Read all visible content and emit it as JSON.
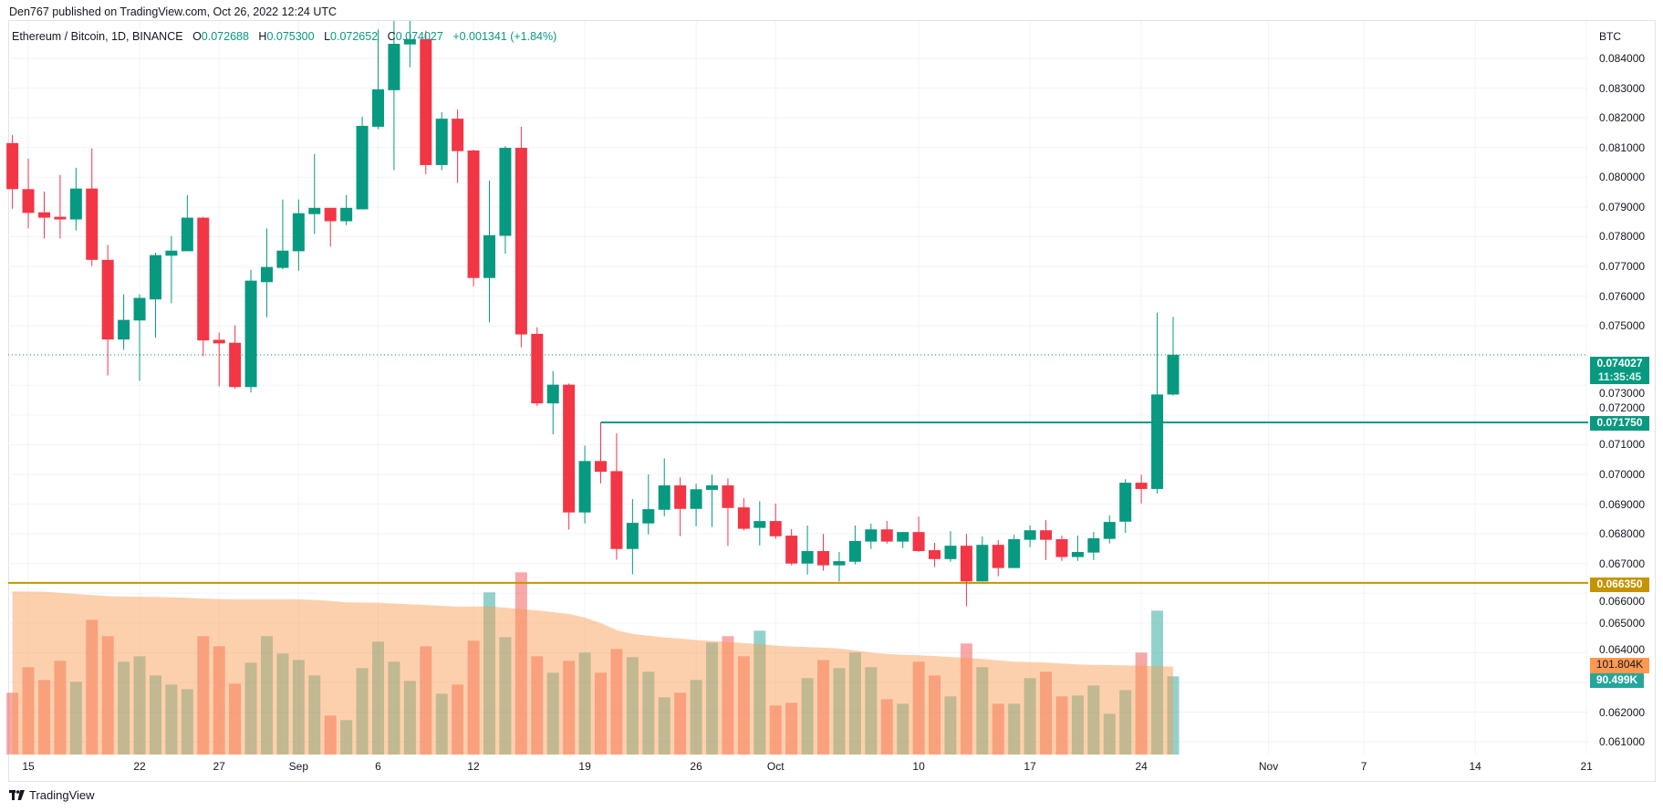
{
  "header": {
    "published": "Den767 published on TradingView.com, Oct 26, 2022 12:24 UTC"
  },
  "legend": {
    "symbol": "Ethereum / Bitcoin, 1D, BINANCE",
    "o_label": "O",
    "o": "0.072688",
    "h_label": "H",
    "h": "0.075300",
    "l_label": "L",
    "l": "0.072652",
    "c_label": "C",
    "c": "0.074027",
    "change": "+0.001341 (+1.84%)"
  },
  "price_axis": {
    "unit": "BTC",
    "ticks": [
      "0.084000",
      "0.083000",
      "0.082000",
      "0.081000",
      "0.080000",
      "0.079000",
      "0.078000",
      "0.077000",
      "0.076000",
      "0.075000",
      "0.073000",
      "0.072000",
      "0.071000",
      "0.070000",
      "0.069000",
      "0.068000",
      "0.067000",
      "0.066000",
      "0.065000",
      "0.064000",
      "0.062000",
      "0.061000"
    ]
  },
  "axis_labels": {
    "last_price": "0.074027",
    "countdown": "11:35:45",
    "resistance": "0.071750",
    "support": "0.066350",
    "volume_ma": "101.804K",
    "volume_last": "90.499K"
  },
  "footer": {
    "brand": "TradingView"
  },
  "colors": {
    "up": "#089981",
    "down": "#f23645",
    "resistance_line": "#089981",
    "support_line": "#c59400",
    "volume_up": "rgba(38,166,154,0.5)",
    "volume_down": "rgba(239,83,80,0.5)",
    "volume_ma_fill": "rgba(251,153,77,0.46)",
    "grid": "#f0f3fa"
  },
  "chart_data": {
    "type": "candlestick",
    "ylabel": "BTC",
    "ylim": [
      0.06057,
      0.08529
    ],
    "grid": true,
    "x_ticks": [
      {
        "label": "15",
        "date": "2022-08-15"
      },
      {
        "label": "22",
        "date": "2022-08-22"
      },
      {
        "label": "27",
        "date": "2022-08-27"
      },
      {
        "label": "Sep",
        "date": "2022-09-01"
      },
      {
        "label": "6",
        "date": "2022-09-06"
      },
      {
        "label": "12",
        "date": "2022-09-12"
      },
      {
        "label": "19",
        "date": "2022-09-19"
      },
      {
        "label": "26",
        "date": "2022-09-26"
      },
      {
        "label": "Oct",
        "date": "2022-10-01"
      },
      {
        "label": "10",
        "date": "2022-10-10"
      },
      {
        "label": "17",
        "date": "2022-10-17"
      },
      {
        "label": "24",
        "date": "2022-10-24"
      },
      {
        "label": "Nov",
        "date": "2022-11-01"
      },
      {
        "label": "7",
        "date": "2022-11-07"
      },
      {
        "label": "14",
        "date": "2022-11-14"
      },
      {
        "label": "21",
        "date": "2022-11-21"
      }
    ],
    "x": [
      "2022-08-14",
      "2022-08-15",
      "2022-08-16",
      "2022-08-17",
      "2022-08-18",
      "2022-08-19",
      "2022-08-20",
      "2022-08-21",
      "2022-08-22",
      "2022-08-23",
      "2022-08-24",
      "2022-08-25",
      "2022-08-26",
      "2022-08-27",
      "2022-08-28",
      "2022-08-29",
      "2022-08-30",
      "2022-08-31",
      "2022-09-01",
      "2022-09-02",
      "2022-09-03",
      "2022-09-04",
      "2022-09-05",
      "2022-09-06",
      "2022-09-07",
      "2022-09-08",
      "2022-09-09",
      "2022-09-10",
      "2022-09-11",
      "2022-09-12",
      "2022-09-13",
      "2022-09-14",
      "2022-09-15",
      "2022-09-16",
      "2022-09-17",
      "2022-09-18",
      "2022-09-19",
      "2022-09-20",
      "2022-09-21",
      "2022-09-22",
      "2022-09-23",
      "2022-09-24",
      "2022-09-25",
      "2022-09-26",
      "2022-09-27",
      "2022-09-28",
      "2022-09-29",
      "2022-09-30",
      "2022-10-01",
      "2022-10-02",
      "2022-10-03",
      "2022-10-04",
      "2022-10-05",
      "2022-10-06",
      "2022-10-07",
      "2022-10-08",
      "2022-10-09",
      "2022-10-10",
      "2022-10-11",
      "2022-10-12",
      "2022-10-13",
      "2022-10-14",
      "2022-10-15",
      "2022-10-16",
      "2022-10-17",
      "2022-10-18",
      "2022-10-19",
      "2022-10-20",
      "2022-10-21",
      "2022-10-22",
      "2022-10-23",
      "2022-10-24",
      "2022-10-25",
      "2022-10-26"
    ],
    "open": [
      0.08115,
      0.0796,
      0.07882,
      0.07867,
      0.07858,
      0.07962,
      0.07722,
      0.07454,
      0.07518,
      0.07589,
      0.07736,
      0.07751,
      0.07864,
      0.07453,
      0.07443,
      0.07294,
      0.07647,
      0.07695,
      0.07751,
      0.07876,
      0.07897,
      0.07852,
      0.07892,
      0.0817,
      0.08293,
      0.08447,
      0.08465,
      0.08041,
      0.08197,
      0.0809,
      0.07661,
      0.07803,
      0.08099,
      0.07473,
      0.07239,
      0.07302,
      0.06872,
      0.07045,
      0.07011,
      0.06749,
      0.06835,
      0.06881,
      0.06963,
      0.06884,
      0.06948,
      0.06963,
      0.06889,
      0.0682,
      0.06843,
      0.06794,
      0.067,
      0.06742,
      0.06694,
      0.06706,
      0.06774,
      0.06815,
      0.06774,
      0.06806,
      0.06745,
      0.06715,
      0.0676,
      0.0664,
      0.06763,
      0.06685,
      0.0678,
      0.06812,
      0.06782,
      0.06722,
      0.06737,
      0.06783,
      0.06841,
      0.06972,
      0.06951,
      0.072688
    ],
    "high": [
      0.08142,
      0.08063,
      0.07952,
      0.08008,
      0.08032,
      0.08097,
      0.07772,
      0.07606,
      0.07606,
      0.07746,
      0.07802,
      0.0794,
      0.07867,
      0.07477,
      0.07502,
      0.07689,
      0.07828,
      0.07925,
      0.07925,
      0.08078,
      0.07897,
      0.0794,
      0.08204,
      0.08497,
      0.08529,
      0.08529,
      0.08493,
      0.08219,
      0.08228,
      0.08093,
      0.07989,
      0.08105,
      0.0817,
      0.07495,
      0.07348,
      0.07306,
      0.07097,
      0.07175,
      0.07138,
      0.06917,
      0.07,
      0.07054,
      0.0699,
      0.06969,
      0.06999,
      0.06987,
      0.0692,
      0.0691,
      0.06902,
      0.06816,
      0.06828,
      0.068,
      0.06739,
      0.06828,
      0.06834,
      0.06843,
      0.06806,
      0.06858,
      0.0677,
      0.06809,
      0.068,
      0.06791,
      0.06779,
      0.06797,
      0.06828,
      0.06846,
      0.06794,
      0.06794,
      0.06806,
      0.06862,
      0.06984,
      0.06999,
      0.07544,
      0.0753
    ],
    "low": [
      0.07894,
      0.07828,
      0.07794,
      0.07794,
      0.07821,
      0.07701,
      0.07333,
      0.07419,
      0.07315,
      0.0746,
      0.07576,
      0.07751,
      0.07398,
      0.07296,
      0.07288,
      0.07276,
      0.07529,
      0.0769,
      0.07685,
      0.07809,
      0.07766,
      0.07839,
      0.07892,
      0.08162,
      0.08024,
      0.0837,
      0.08011,
      0.08024,
      0.07981,
      0.07633,
      0.07512,
      0.07743,
      0.07428,
      0.0723,
      0.07135,
      0.06814,
      0.06835,
      0.0697,
      0.06713,
      0.06664,
      0.06798,
      0.06859,
      0.06792,
      0.06825,
      0.06823,
      0.06759,
      0.06811,
      0.06761,
      0.06783,
      0.06694,
      0.06663,
      0.06676,
      0.0664,
      0.06697,
      0.06749,
      0.06767,
      0.06752,
      0.06739,
      0.06688,
      0.06706,
      0.06556,
      0.0664,
      0.06657,
      0.06685,
      0.06755,
      0.06712,
      0.06709,
      0.06709,
      0.06712,
      0.06768,
      0.06803,
      0.06902,
      0.06936,
      0.072652
    ],
    "close": [
      0.0796,
      0.0788,
      0.07864,
      0.07858,
      0.07962,
      0.07722,
      0.07454,
      0.0752,
      0.07594,
      0.07738,
      0.07753,
      0.07864,
      0.07451,
      0.07441,
      0.07294,
      0.07652,
      0.07698,
      0.07753,
      0.07879,
      0.07897,
      0.07852,
      0.07897,
      0.08173,
      0.08296,
      0.08449,
      0.08465,
      0.08041,
      0.08197,
      0.08088,
      0.07661,
      0.07805,
      0.08099,
      0.07471,
      0.07239,
      0.07302,
      0.06872,
      0.07045,
      0.07009,
      0.06749,
      0.06837,
      0.06883,
      0.06963,
      0.06884,
      0.0695,
      0.06963,
      0.06887,
      0.06817,
      0.06843,
      0.06792,
      0.067,
      0.06742,
      0.06694,
      0.06708,
      0.06776,
      0.06815,
      0.06774,
      0.06806,
      0.06742,
      0.06715,
      0.0676,
      0.0664,
      0.06763,
      0.06685,
      0.06782,
      0.06812,
      0.0678,
      0.06722,
      0.06739,
      0.06785,
      0.0684,
      0.06972,
      0.06951,
      0.07269,
      0.074027
    ],
    "volume_unit": "K",
    "volume": [
      71.5,
      101.1,
      86.3,
      108.4,
      84.2,
      156.0,
      137.0,
      107.4,
      113.7,
      91.5,
      81.0,
      75.7,
      137.0,
      125.3,
      82.0,
      106.3,
      137.0,
      116.9,
      109.5,
      91.5,
      45.1,
      39.8,
      100.0,
      130.6,
      107.4,
      85.2,
      125.3,
      70.4,
      81.0,
      131.7,
      187.7,
      135.9,
      210.9,
      113.7,
      94.7,
      108.4,
      118.0,
      94.7,
      122.2,
      112.7,
      95.8,
      66.2,
      71.5,
      86.3,
      129.6,
      137.0,
      113.7,
      143.3,
      56.7,
      59.9,
      88.4,
      109.5,
      100.0,
      118.0,
      101.1,
      64.1,
      58.8,
      107.4,
      91.5,
      67.3,
      128.5,
      101.1,
      58.8,
      58.8,
      88.4,
      95.8,
      67.3,
      68.3,
      79.9,
      47.2,
      74.6,
      118.0,
      166.5,
      90.499
    ],
    "volume_ma": [
      188.7,
      188.6,
      188.4,
      187.2,
      185.9,
      184.6,
      183.3,
      182.9,
      182.6,
      182.4,
      181.9,
      181.4,
      180.6,
      179.9,
      179.6,
      179.6,
      179.6,
      179.6,
      179.6,
      178.9,
      177.8,
      176.1,
      175.9,
      175.7,
      174.8,
      173.9,
      173.1,
      172.1,
      171.1,
      171.3,
      171.5,
      170.0,
      168.3,
      166.9,
      164.8,
      162.7,
      158.5,
      152.0,
      144.0,
      139.5,
      137.5,
      135.5,
      134.2,
      132.5,
      131.5,
      130.2,
      129.0,
      127.8,
      126.0,
      125.0,
      124.4,
      123.7,
      122.7,
      120.5,
      118.2,
      116.3,
      115.5,
      114.8,
      114.0,
      112.8,
      111.8,
      110.8,
      109.0,
      107.5,
      107.0,
      106.4,
      105.3,
      104.3,
      103.8,
      103.5,
      103.2,
      102.7,
      102.2,
      101.804
    ],
    "horizontal_lines": [
      {
        "price": 0.07175,
        "from": "2022-09-20",
        "color": "#089981"
      },
      {
        "price": 0.06635,
        "from": "2022-08-14",
        "color": "#c59400"
      }
    ],
    "last_price_line": 0.074027
  }
}
